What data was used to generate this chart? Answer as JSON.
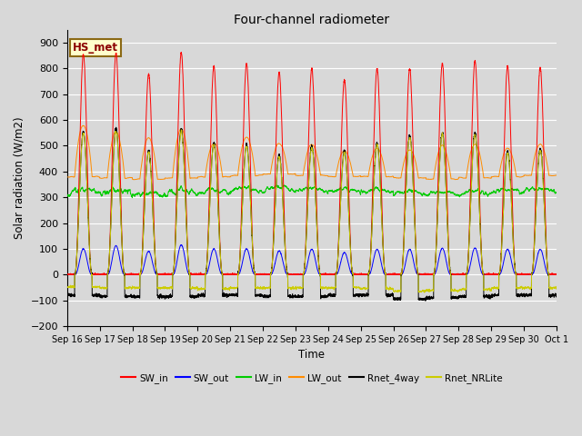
{
  "title": "Four-channel radiometer",
  "xlabel": "Time",
  "ylabel": "Solar radiation (W/m2)",
  "ylim": [
    -200,
    950
  ],
  "yticks": [
    -200,
    -100,
    0,
    100,
    200,
    300,
    400,
    500,
    600,
    700,
    800,
    900
  ],
  "background_color": "#d8d8d8",
  "plot_bg_color": "#d8d8d8",
  "annotation_text": "HS_met",
  "annotation_box_color": "#ffffcc",
  "annotation_box_edge": "#8B6914",
  "legend_entries": [
    "SW_in",
    "SW_out",
    "LW_in",
    "LW_out",
    "Rnet_4way",
    "Rnet_NRLite"
  ],
  "legend_colors": [
    "#ff0000",
    "#0000ff",
    "#00cc00",
    "#ff8c00",
    "#000000",
    "#cccc00"
  ],
  "num_days": 15,
  "day_labels": [
    "Sep 16",
    "Sep 17",
    "Sep 18",
    "Sep 19",
    "Sep 20",
    "Sep 21",
    "Sep 22",
    "Sep 23",
    "Sep 24",
    "Sep 25",
    "Sep 26",
    "Sep 27",
    "Sep 28",
    "Sep 29",
    "Sep 30",
    "Oct 1"
  ],
  "grid_color": "#ffffff",
  "SW_in_peak": [
    855,
    860,
    780,
    862,
    810,
    820,
    785,
    800,
    755,
    800,
    800,
    820,
    830,
    810,
    805
  ],
  "SW_out_peak": [
    100,
    112,
    90,
    115,
    100,
    100,
    92,
    98,
    85,
    98,
    98,
    102,
    103,
    98,
    98
  ],
  "LW_in_base": [
    315,
    310,
    305,
    310,
    315,
    320,
    325,
    320,
    315,
    315,
    310,
    305,
    310,
    315,
    320
  ],
  "LW_in_noise": [
    25,
    30,
    25,
    25,
    20,
    20,
    20,
    20,
    20,
    20,
    20,
    20,
    20,
    20,
    20
  ],
  "LW_out_base": [
    380,
    375,
    370,
    375,
    380,
    385,
    390,
    385,
    380,
    380,
    375,
    370,
    375,
    380,
    385
  ],
  "LW_out_day_bump": [
    200,
    180,
    160,
    190,
    130,
    150,
    120,
    120,
    100,
    110,
    110,
    130,
    130,
    110,
    120
  ],
  "Rnet_4way_peak": [
    555,
    565,
    480,
    565,
    510,
    505,
    465,
    500,
    480,
    510,
    540,
    550,
    550,
    480,
    490
  ],
  "Rnet_4way_night": [
    -80,
    -85,
    -85,
    -85,
    -80,
    -80,
    -85,
    -85,
    -80,
    -80,
    -95,
    -90,
    -85,
    -80,
    -80
  ],
  "Rnet_NRLite_peak": [
    550,
    558,
    475,
    558,
    505,
    498,
    458,
    493,
    473,
    503,
    533,
    545,
    543,
    473,
    483
  ],
  "Rnet_NRLite_night": [
    -48,
    -52,
    -52,
    -52,
    -55,
    -52,
    -52,
    -52,
    -52,
    -55,
    -65,
    -62,
    -58,
    -52,
    -52
  ]
}
